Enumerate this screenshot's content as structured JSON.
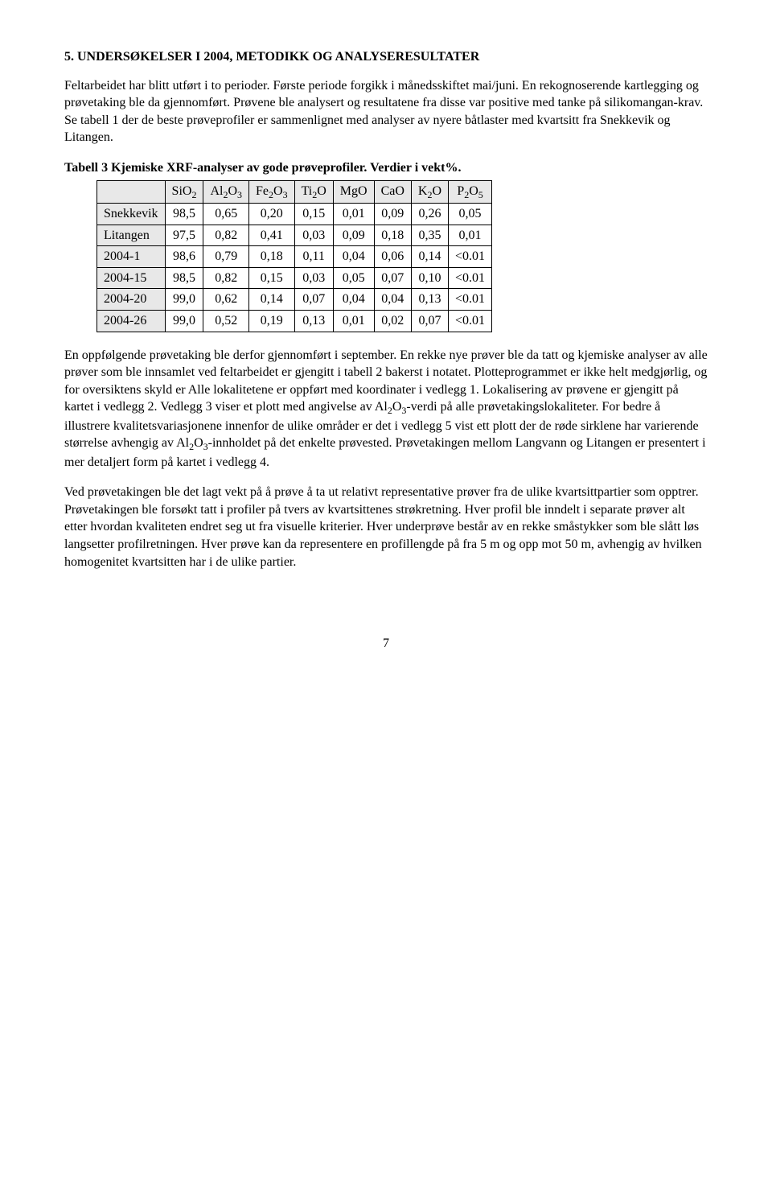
{
  "heading": "5.  UNDERSØKELSER I 2004, METODIKK OG ANALYSERESULTATER",
  "para1": "Feltarbeidet har blitt utført i to perioder. Første periode forgikk i månedsskiftet mai/juni. En rekognoserende kartlegging og prøvetaking ble da gjennomført. Prøvene ble analysert og resultatene fra disse var positive med tanke på silikomangan-krav. Se tabell 1 der de beste prøveprofiler er sammenlignet med analyser av nyere båtlaster med kvartsitt fra Snekkevik og Litangen.",
  "tableCaption": "Tabell 3 Kjemiske XRF-analyser av gode prøveprofiler. Verdier i vekt%.",
  "columns": [
    "SiO2",
    "Al2O3",
    "Fe2O3",
    "Ti2O",
    "MgO",
    "CaO",
    "K2O",
    "P2O5"
  ],
  "rows": [
    {
      "label": "Snekkevik",
      "values": [
        "98,5",
        "0,65",
        "0,20",
        "0,15",
        "0,01",
        "0,09",
        "0,26",
        "0,05"
      ]
    },
    {
      "label": "Litangen",
      "values": [
        "97,5",
        "0,82",
        "0,41",
        "0,03",
        "0,09",
        "0,18",
        "0,35",
        "0,01"
      ]
    },
    {
      "label": "2004-1",
      "values": [
        "98,6",
        "0,79",
        "0,18",
        "0,11",
        "0,04",
        "0,06",
        "0,14",
        "<0.01"
      ]
    },
    {
      "label": "2004-15",
      "values": [
        "98,5",
        "0,82",
        "0,15",
        "0,03",
        "0,05",
        "0,07",
        "0,10",
        "<0.01"
      ]
    },
    {
      "label": "2004-20",
      "values": [
        "99,0",
        "0,62",
        "0,14",
        "0,07",
        "0,04",
        "0,04",
        "0,13",
        "<0.01"
      ]
    },
    {
      "label": "2004-26",
      "values": [
        "99,0",
        "0,52",
        "0,19",
        "0,13",
        "0,01",
        "0,02",
        "0,07",
        "<0.01"
      ]
    }
  ],
  "para2a": "En oppfølgende prøvetaking ble derfor gjennomført i september. En rekke nye prøver ble da tatt og kjemiske analyser av alle prøver som ble innsamlet ved feltarbeidet er gjengitt i tabell 2 bakerst i notatet. Plotteprogrammet er ikke helt medgjørlig, og for oversiktens skyld er Alle lokalitetene er oppført med koordinater i vedlegg 1. Lokalisering av prøvene er gjengitt på kartet i vedlegg 2. Vedlegg 3 viser et plott med angivelse av Al",
  "para2b": "-verdi på alle prøvetakingslokaliteter. For bedre å illustrere kvalitetsvariasjonene innenfor de ulike områder er det i vedlegg 5 vist ett plott der de røde sirklene har varierende størrelse avhengig av Al",
  "para2c": "-innholdet på det enkelte prøvested. Prøvetakingen mellom Langvann og Litangen er presentert i mer detaljert form på kartet i vedlegg 4.",
  "para3": "Ved prøvetakingen ble det lagt vekt på å prøve å ta ut relativt representative prøver fra de ulike kvartsittpartier som opptrer. Prøvetakingen ble forsøkt tatt i profiler på tvers av kvartsittenes strøkretning. Hver profil ble inndelt i separate prøver alt etter hvordan kvaliteten endret seg ut fra visuelle kriterier. Hver underprøve består av en rekke småstykker som ble slått løs langsetter profilretningen. Hver prøve kan da representere en profillengde på fra 5 m og opp mot 50 m, avhengig av hvilken homogenitet kvartsitten har i de ulike partier.",
  "pageNumber": "7"
}
